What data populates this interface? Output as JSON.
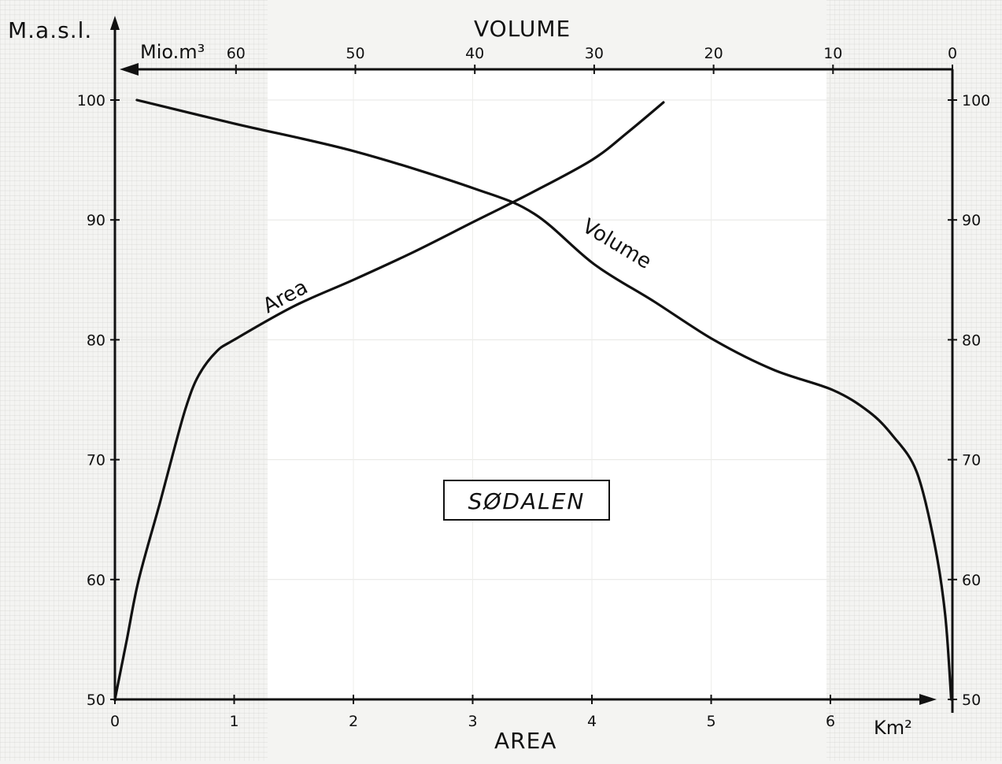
{
  "chart_data": {
    "type": "line",
    "title": "SØDALEN",
    "xlabel": "AREA",
    "x_unit": "Km²",
    "x_ticks": [
      "0",
      "1",
      "2",
      "3",
      "4",
      "5",
      "6"
    ],
    "xlim": [
      0,
      6.9
    ],
    "x2label": "VOLUME",
    "x2_unit": "Mio.m³",
    "x2_ticks": [
      "60",
      "50",
      "40",
      "30",
      "20",
      "10",
      "0"
    ],
    "x2lim": [
      70,
      0
    ],
    "ylabel": "M.a.s.l.",
    "y_ticks": [
      "50",
      "60",
      "70",
      "80",
      "90",
      "100"
    ],
    "ylim": [
      50,
      101
    ],
    "grid": true,
    "series": [
      {
        "name": "Area",
        "axis": "area",
        "points": [
          [
            0,
            50
          ],
          [
            0.1,
            55
          ],
          [
            0.2,
            60
          ],
          [
            0.38,
            66.5
          ],
          [
            0.5,
            71
          ],
          [
            0.6,
            74.5
          ],
          [
            0.7,
            77
          ],
          [
            0.85,
            79
          ],
          [
            1.0,
            80
          ],
          [
            1.5,
            82.8
          ],
          [
            2.0,
            85
          ],
          [
            2.5,
            87.3
          ],
          [
            3.0,
            89.8
          ],
          [
            3.5,
            92.3
          ],
          [
            4.0,
            95
          ],
          [
            4.3,
            97.3
          ],
          [
            4.6,
            99.8
          ]
        ]
      },
      {
        "name": "Volume",
        "axis": "volume",
        "points": [
          [
            68.3,
            100
          ],
          [
            60,
            98
          ],
          [
            50,
            95.7
          ],
          [
            40,
            92.6
          ],
          [
            35,
            90.5
          ],
          [
            30,
            86.3
          ],
          [
            25,
            83.2
          ],
          [
            20,
            80
          ],
          [
            15,
            77.5
          ],
          [
            10,
            75.8
          ],
          [
            7,
            74
          ],
          [
            5,
            72
          ],
          [
            3,
            69
          ],
          [
            1.5,
            63
          ],
          [
            0.6,
            57
          ],
          [
            0.1,
            50
          ]
        ]
      }
    ]
  }
}
